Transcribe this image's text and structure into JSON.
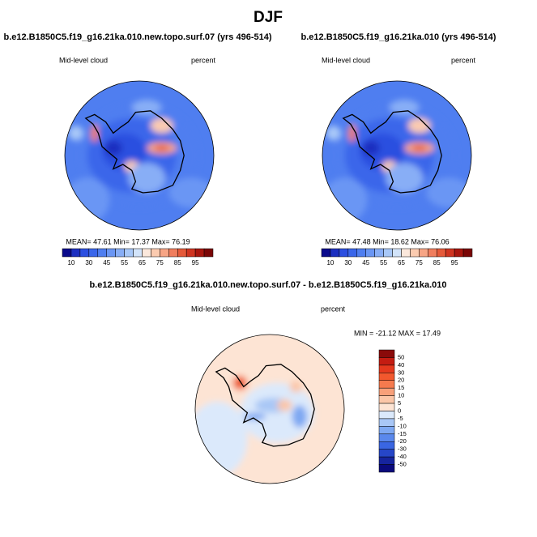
{
  "title": "DJF",
  "panels": [
    {
      "title": "b.e12.B1850C5.f19_g16.21ka.010.new.topo.surf.07 (yrs 496-514)",
      "variable": "Mid-level cloud",
      "units": "percent",
      "stats": "MEAN= 47.61  Min= 17.37  Max= 76.19"
    },
    {
      "title": "b.e12.B1850C5.f19_g16.21ka.010 (yrs 496-514)",
      "variable": "Mid-level cloud",
      "units": "percent",
      "stats": "MEAN= 47.48  Min= 18.62  Max= 76.06"
    },
    {
      "title": "b.e12.B1850C5.f19_g16.21ka.010.new.topo.surf.07 - b.e12.B1850C5.f19_g16.21ka.010",
      "variable": "Mid-level cloud",
      "units": "percent",
      "stats": "MIN = -21.12 MAX =  17.49"
    }
  ],
  "colorbar": {
    "labels": [
      "10",
      "30",
      "45",
      "55",
      "65",
      "75",
      "85",
      "95"
    ],
    "colors": [
      "#0a0a8c",
      "#1c2fc0",
      "#2c4fe0",
      "#3a66ea",
      "#4f7ef0",
      "#6a96f4",
      "#88aef6",
      "#a8c8f8",
      "#d2e4fa",
      "#fbe8dc",
      "#fbcbb0",
      "#f7a585",
      "#f07e5e",
      "#e55a3a",
      "#cf3420",
      "#a8160e",
      "#7a0606"
    ]
  },
  "diff_colorbar": {
    "labels": [
      "50",
      "40",
      "30",
      "20",
      "15",
      "10",
      "5",
      "0",
      "-5",
      "-10",
      "-15",
      "-20",
      "-30",
      "-40",
      "-50"
    ],
    "colors": [
      "#8a0a0a",
      "#c41c12",
      "#e5391e",
      "#f2582e",
      "#f57a4e",
      "#f8a07a",
      "#fbc6a8",
      "#fde4d4",
      "#dbe9fb",
      "#a9c7f6",
      "#7ea8f2",
      "#5a88ec",
      "#3a66e2",
      "#2646c8",
      "#16249e",
      "#0a0a7c"
    ]
  }
}
